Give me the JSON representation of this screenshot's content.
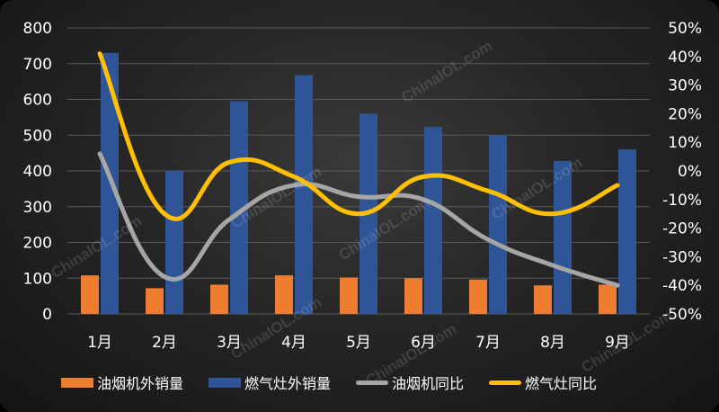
{
  "chart_data": {
    "type": "bar",
    "categories": [
      "1月",
      "2月",
      "3月",
      "4月",
      "5月",
      "6月",
      "7月",
      "8月",
      "9月"
    ],
    "series": [
      {
        "name": "油烟机外销量",
        "type": "bar",
        "axis": "left",
        "color": "#ED7D31",
        "values": [
          108,
          72,
          82,
          108,
          102,
          100,
          96,
          80,
          82
        ]
      },
      {
        "name": "燃气灶外销量",
        "type": "bar",
        "axis": "left",
        "color": "#2F5597",
        "values": [
          730,
          400,
          595,
          668,
          560,
          523,
          500,
          428,
          460
        ]
      },
      {
        "name": "油烟机同比",
        "type": "line",
        "axis": "right",
        "color": "#A6A6A6",
        "values": [
          6,
          -37,
          -17,
          -5,
          -9,
          -10,
          -24,
          -33,
          -40
        ]
      },
      {
        "name": "燃气灶同比",
        "type": "line",
        "axis": "right",
        "color": "#FFC000",
        "values": [
          41,
          -15,
          3,
          -2,
          -15,
          -2,
          -7,
          -15,
          -5
        ]
      }
    ],
    "ylim_left": [
      0,
      800
    ],
    "ylim_right": [
      -50,
      50
    ],
    "yticks_left": [
      "0",
      "100",
      "200",
      "300",
      "400",
      "500",
      "600",
      "700",
      "800"
    ],
    "yticks_right": [
      "-50%",
      "-40%",
      "-30%",
      "-20%",
      "-10%",
      "0%",
      "10%",
      "20%",
      "30%",
      "40%",
      "50%"
    ],
    "grid": true,
    "legend_position": "bottom"
  },
  "watermark": "ChinaIOL.com"
}
